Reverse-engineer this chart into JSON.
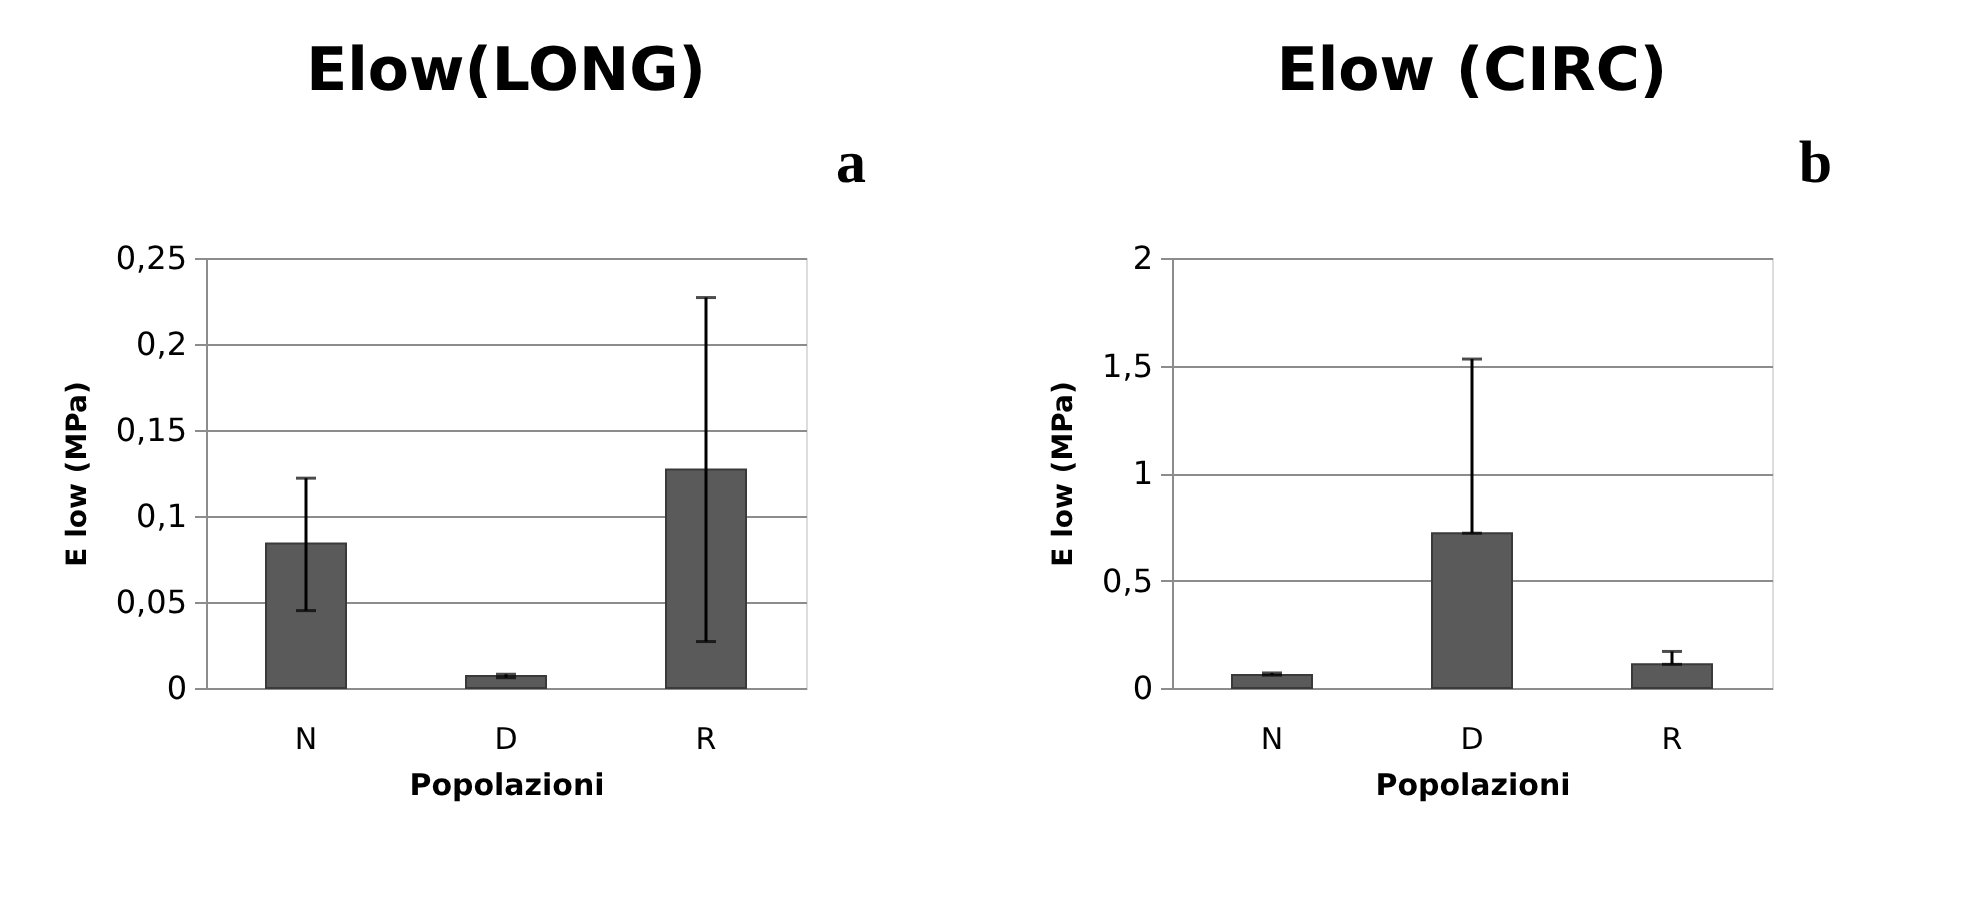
{
  "chart_data": [
    {
      "type": "bar",
      "title": "Elow(LONG)",
      "xlabel": "Popolazioni",
      "ylabel": "E low (MPa)",
      "categories": [
        "N",
        "D",
        "R"
      ],
      "values": [
        0.084,
        0.007,
        0.127
      ],
      "color": "#5a5a5a",
      "errors": [
        [
          0.045,
          0.122
        ],
        [
          0.006,
          0.008
        ],
        [
          0.027,
          0.227
        ]
      ],
      "ylim": [
        0,
        0.25
      ],
      "yticks": [
        0,
        {
          "value": 0.05,
          "label": "0,05"
        },
        {
          "value": 0.1,
          "label": "0,1"
        },
        {
          "value": 0.15,
          "label": "0,15"
        },
        {
          "value": 0.2,
          "label": "0,2"
        },
        {
          "value": 0.25,
          "label": "0,25"
        }
      ],
      "grid": "y",
      "annotations": [
        "a"
      ]
    },
    {
      "type": "bar",
      "title": "Elow (CIRC)",
      "xlabel": "Popolazioni",
      "ylabel": "E low (MPa)",
      "categories": [
        "N",
        "D",
        "R"
      ],
      "values": [
        0.06,
        0.72,
        0.11
      ],
      "color": "#5a5a5a",
      "errors": [
        [
          0.06,
          0.07
        ],
        [
          0.72,
          1.53
        ],
        [
          0.11,
          0.17
        ]
      ],
      "ylim": [
        0,
        2
      ],
      "yticks": [
        0,
        {
          "value": 0.5,
          "label": "0,5"
        },
        1,
        {
          "value": 1.5,
          "label": "1,5"
        },
        2
      ],
      "grid": "y",
      "annotations": [
        "b"
      ]
    }
  ]
}
